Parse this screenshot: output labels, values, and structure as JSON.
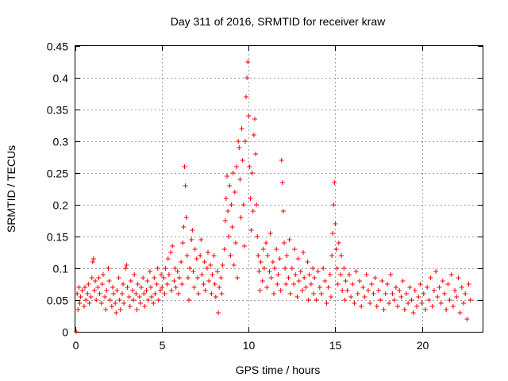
{
  "chart_data": {
    "type": "scatter",
    "title": "Day 311 of 2016, SRMTID for receiver kraw",
    "xlabel": "GPS time / hours",
    "ylabel": "SRMTID / TECUs",
    "xlim": [
      0,
      23.5
    ],
    "ylim": [
      0,
      0.45
    ],
    "xticks": [
      0,
      5,
      10,
      15,
      20
    ],
    "xtick_labels": [
      "0",
      "5",
      "10",
      "15",
      "20"
    ],
    "yticks": [
      0,
      0.05,
      0.1,
      0.15,
      0.2,
      0.25,
      0.3,
      0.35,
      0.4,
      0.45
    ],
    "ytick_labels": [
      "0",
      "0.05",
      "0.1",
      "0.15",
      "0.2",
      "0.25",
      "0.3",
      "0.35",
      "0.4",
      "0.45"
    ],
    "grid": true,
    "marker": "+",
    "color": "#ff0000",
    "series": [
      {
        "name": "SRMTID",
        "points": [
          [
            0.05,
            0.0
          ],
          [
            0.1,
            0.06
          ],
          [
            0.15,
            0.035
          ],
          [
            0.2,
            0.07
          ],
          [
            0.25,
            0.045
          ],
          [
            0.3,
            0.055
          ],
          [
            0.4,
            0.065
          ],
          [
            0.5,
            0.04
          ],
          [
            0.55,
            0.07
          ],
          [
            0.6,
            0.05
          ],
          [
            0.7,
            0.06
          ],
          [
            0.75,
            0.075
          ],
          [
            0.8,
            0.045
          ],
          [
            0.9,
            0.055
          ],
          [
            0.95,
            0.085
          ],
          [
            1.0,
            0.11
          ],
          [
            1.05,
            0.115
          ],
          [
            1.1,
            0.065
          ],
          [
            1.15,
            0.08
          ],
          [
            1.2,
            0.05
          ],
          [
            1.3,
            0.07
          ],
          [
            1.35,
            0.085
          ],
          [
            1.4,
            0.06
          ],
          [
            1.5,
            0.045
          ],
          [
            1.55,
            0.075
          ],
          [
            1.6,
            0.09
          ],
          [
            1.7,
            0.055
          ],
          [
            1.75,
            0.035
          ],
          [
            1.8,
            0.065
          ],
          [
            1.9,
            0.1
          ],
          [
            1.95,
            0.08
          ],
          [
            2.0,
            0.05
          ],
          [
            2.1,
            0.04
          ],
          [
            2.15,
            0.07
          ],
          [
            2.2,
            0.06
          ],
          [
            2.3,
            0.045
          ],
          [
            2.35,
            0.03
          ],
          [
            2.4,
            0.065
          ],
          [
            2.5,
            0.085
          ],
          [
            2.55,
            0.05
          ],
          [
            2.6,
            0.035
          ],
          [
            2.7,
            0.06
          ],
          [
            2.75,
            0.075
          ],
          [
            2.8,
            0.045
          ],
          [
            2.9,
            0.1
          ],
          [
            2.95,
            0.105
          ],
          [
            3.0,
            0.07
          ],
          [
            3.1,
            0.055
          ],
          [
            3.15,
            0.04
          ],
          [
            3.2,
            0.08
          ],
          [
            3.3,
            0.065
          ],
          [
            3.35,
            0.05
          ],
          [
            3.4,
            0.09
          ],
          [
            3.5,
            0.06
          ],
          [
            3.55,
            0.035
          ],
          [
            3.6,
            0.075
          ],
          [
            3.7,
            0.055
          ],
          [
            3.75,
            0.045
          ],
          [
            3.8,
            0.07
          ],
          [
            3.9,
            0.085
          ],
          [
            3.95,
            0.06
          ],
          [
            4.0,
            0.04
          ],
          [
            4.1,
            0.065
          ],
          [
            4.15,
            0.08
          ],
          [
            4.2,
            0.05
          ],
          [
            4.3,
            0.095
          ],
          [
            4.35,
            0.07
          ],
          [
            4.4,
            0.055
          ],
          [
            4.5,
            0.045
          ],
          [
            4.55,
            0.085
          ],
          [
            4.6,
            0.06
          ],
          [
            4.7,
            0.075
          ],
          [
            4.75,
            0.1
          ],
          [
            4.8,
            0.05
          ],
          [
            4.9,
            0.065
          ],
          [
            4.95,
            0.09
          ],
          [
            5.0,
            0.07
          ],
          [
            5.1,
            0.085
          ],
          [
            5.15,
            0.06
          ],
          [
            5.2,
            0.1
          ],
          [
            5.3,
            0.075
          ],
          [
            5.35,
            0.115
          ],
          [
            5.4,
            0.09
          ],
          [
            5.5,
            0.125
          ],
          [
            5.55,
            0.065
          ],
          [
            5.6,
            0.135
          ],
          [
            5.7,
            0.08
          ],
          [
            5.75,
            0.1
          ],
          [
            5.8,
            0.07
          ],
          [
            5.9,
            0.095
          ],
          [
            5.95,
            0.06
          ],
          [
            6.0,
            0.085
          ],
          [
            6.1,
            0.11
          ],
          [
            6.15,
            0.075
          ],
          [
            6.2,
            0.14
          ],
          [
            6.25,
            0.165
          ],
          [
            6.3,
            0.26
          ],
          [
            6.35,
            0.23
          ],
          [
            6.4,
            0.18
          ],
          [
            6.45,
            0.12
          ],
          [
            6.5,
            0.085
          ],
          [
            6.55,
            0.05
          ],
          [
            6.6,
            0.1
          ],
          [
            6.7,
            0.145
          ],
          [
            6.75,
            0.16
          ],
          [
            6.8,
            0.095
          ],
          [
            6.85,
            0.07
          ],
          [
            6.9,
            0.13
          ],
          [
            7.0,
            0.115
          ],
          [
            7.05,
            0.085
          ],
          [
            7.1,
            0.06
          ],
          [
            7.2,
            0.12
          ],
          [
            7.25,
            0.145
          ],
          [
            7.3,
            0.09
          ],
          [
            7.4,
            0.075
          ],
          [
            7.45,
            0.11
          ],
          [
            7.5,
            0.065
          ],
          [
            7.6,
            0.1
          ],
          [
            7.65,
            0.125
          ],
          [
            7.7,
            0.08
          ],
          [
            7.8,
            0.105
          ],
          [
            7.85,
            0.06
          ],
          [
            7.9,
            0.09
          ],
          [
            8.0,
            0.12
          ],
          [
            8.05,
            0.075
          ],
          [
            8.1,
            0.055
          ],
          [
            8.2,
            0.095
          ],
          [
            8.25,
            0.03
          ],
          [
            8.3,
            0.07
          ],
          [
            8.4,
            0.085
          ],
          [
            8.45,
            0.06
          ],
          [
            8.5,
            0.105
          ],
          [
            8.6,
            0.13
          ],
          [
            8.65,
            0.175
          ],
          [
            8.7,
            0.21
          ],
          [
            8.75,
            0.245
          ],
          [
            8.8,
            0.19
          ],
          [
            8.85,
            0.15
          ],
          [
            8.9,
            0.23
          ],
          [
            8.95,
            0.12
          ],
          [
            9.0,
            0.2
          ],
          [
            9.05,
            0.165
          ],
          [
            9.1,
            0.25
          ],
          [
            9.15,
            0.105
          ],
          [
            9.2,
            0.22
          ],
          [
            9.25,
            0.14
          ],
          [
            9.3,
            0.26
          ],
          [
            9.35,
            0.085
          ],
          [
            9.4,
            0.3
          ],
          [
            9.45,
            0.29
          ],
          [
            9.5,
            0.24
          ],
          [
            9.55,
            0.18
          ],
          [
            9.6,
            0.32
          ],
          [
            9.65,
            0.27
          ],
          [
            9.7,
            0.2
          ],
          [
            9.75,
            0.135
          ],
          [
            9.8,
            0.3
          ],
          [
            9.85,
            0.37
          ],
          [
            9.9,
            0.4
          ],
          [
            9.95,
            0.425
          ],
          [
            10.0,
            0.34
          ],
          [
            10.05,
            0.26
          ],
          [
            10.1,
            0.21
          ],
          [
            10.15,
            0.16
          ],
          [
            10.2,
            0.25
          ],
          [
            10.25,
            0.19
          ],
          [
            10.3,
            0.31
          ],
          [
            10.35,
            0.335
          ],
          [
            10.4,
            0.28
          ],
          [
            10.45,
            0.2
          ],
          [
            10.5,
            0.15
          ],
          [
            10.55,
            0.12
          ],
          [
            10.6,
            0.095
          ],
          [
            10.65,
            0.065
          ],
          [
            10.7,
            0.11
          ],
          [
            10.8,
            0.08
          ],
          [
            10.85,
            0.13
          ],
          [
            10.9,
            0.1
          ],
          [
            11.0,
            0.14
          ],
          [
            11.05,
            0.07
          ],
          [
            11.1,
            0.12
          ],
          [
            11.2,
            0.095
          ],
          [
            11.25,
            0.155
          ],
          [
            11.3,
            0.085
          ],
          [
            11.4,
            0.11
          ],
          [
            11.45,
            0.06
          ],
          [
            11.5,
            0.1
          ],
          [
            11.6,
            0.13
          ],
          [
            11.65,
            0.075
          ],
          [
            11.7,
            0.09
          ],
          [
            11.8,
            0.115
          ],
          [
            11.85,
            0.065
          ],
          [
            11.9,
            0.27
          ],
          [
            11.95,
            0.235
          ],
          [
            12.0,
            0.19
          ],
          [
            12.05,
            0.14
          ],
          [
            12.1,
            0.1
          ],
          [
            12.15,
            0.075
          ],
          [
            12.2,
            0.12
          ],
          [
            12.3,
            0.085
          ],
          [
            12.35,
            0.145
          ],
          [
            12.4,
            0.06
          ],
          [
            12.5,
            0.1
          ],
          [
            12.6,
            0.075
          ],
          [
            12.65,
            0.13
          ],
          [
            12.7,
            0.09
          ],
          [
            12.8,
            0.055
          ],
          [
            12.85,
            0.115
          ],
          [
            12.9,
            0.08
          ],
          [
            13.0,
            0.095
          ],
          [
            13.1,
            0.065
          ],
          [
            13.15,
            0.125
          ],
          [
            13.2,
            0.085
          ],
          [
            13.3,
            0.07
          ],
          [
            13.4,
            0.11
          ],
          [
            13.45,
            0.05
          ],
          [
            13.5,
            0.09
          ],
          [
            13.6,
            0.075
          ],
          [
            13.7,
            0.1
          ],
          [
            13.75,
            0.06
          ],
          [
            13.8,
            0.085
          ],
          [
            13.9,
            0.05
          ],
          [
            14.0,
            0.095
          ],
          [
            14.1,
            0.07
          ],
          [
            14.2,
            0.06
          ],
          [
            14.3,
            0.1
          ],
          [
            14.4,
            0.08
          ],
          [
            14.5,
            0.045
          ],
          [
            14.6,
            0.07
          ],
          [
            14.7,
            0.09
          ],
          [
            14.75,
            0.055
          ],
          [
            14.8,
            0.12
          ],
          [
            14.85,
            0.155
          ],
          [
            14.9,
            0.2
          ],
          [
            14.95,
            0.235
          ],
          [
            15.0,
            0.17
          ],
          [
            15.05,
            0.13
          ],
          [
            15.1,
            0.1
          ],
          [
            15.15,
            0.075
          ],
          [
            15.2,
            0.14
          ],
          [
            15.3,
            0.09
          ],
          [
            15.35,
            0.12
          ],
          [
            15.4,
            0.065
          ],
          [
            15.5,
            0.1
          ],
          [
            15.55,
            0.05
          ],
          [
            15.6,
            0.08
          ],
          [
            15.7,
            0.065
          ],
          [
            15.8,
            0.09
          ],
          [
            15.9,
            0.055
          ],
          [
            16.0,
            0.075
          ],
          [
            16.1,
            0.045
          ],
          [
            16.2,
            0.095
          ],
          [
            16.3,
            0.06
          ],
          [
            16.4,
            0.08
          ],
          [
            16.5,
            0.04
          ],
          [
            16.6,
            0.07
          ],
          [
            16.7,
            0.055
          ],
          [
            16.8,
            0.09
          ],
          [
            16.9,
            0.065
          ],
          [
            17.0,
            0.045
          ],
          [
            17.1,
            0.075
          ],
          [
            17.2,
            0.06
          ],
          [
            17.3,
            0.085
          ],
          [
            17.4,
            0.04
          ],
          [
            17.5,
            0.065
          ],
          [
            17.6,
            0.05
          ],
          [
            17.7,
            0.08
          ],
          [
            17.8,
            0.035
          ],
          [
            17.9,
            0.06
          ],
          [
            18.0,
            0.075
          ],
          [
            18.1,
            0.045
          ],
          [
            18.2,
            0.09
          ],
          [
            18.3,
            0.06
          ],
          [
            18.4,
            0.05
          ],
          [
            18.5,
            0.07
          ],
          [
            18.6,
            0.04
          ],
          [
            18.7,
            0.065
          ],
          [
            18.8,
            0.055
          ],
          [
            18.9,
            0.08
          ],
          [
            19.0,
            0.035
          ],
          [
            19.1,
            0.06
          ],
          [
            19.2,
            0.045
          ],
          [
            19.3,
            0.07
          ],
          [
            19.4,
            0.05
          ],
          [
            19.5,
            0.03
          ],
          [
            19.6,
            0.065
          ],
          [
            19.7,
            0.04
          ],
          [
            19.8,
            0.055
          ],
          [
            19.9,
            0.075
          ],
          [
            20.0,
            0.045
          ],
          [
            20.1,
            0.06
          ],
          [
            20.2,
            0.035
          ],
          [
            20.3,
            0.07
          ],
          [
            20.4,
            0.05
          ],
          [
            20.5,
            0.085
          ],
          [
            20.6,
            0.04
          ],
          [
            20.7,
            0.065
          ],
          [
            20.8,
            0.095
          ],
          [
            20.9,
            0.055
          ],
          [
            21.0,
            0.07
          ],
          [
            21.1,
            0.045
          ],
          [
            21.2,
            0.08
          ],
          [
            21.3,
            0.06
          ],
          [
            21.4,
            0.035
          ],
          [
            21.5,
            0.075
          ],
          [
            21.6,
            0.05
          ],
          [
            21.7,
            0.09
          ],
          [
            21.8,
            0.04
          ],
          [
            21.9,
            0.065
          ],
          [
            22.0,
            0.055
          ],
          [
            22.1,
            0.085
          ],
          [
            22.2,
            0.03
          ],
          [
            22.3,
            0.07
          ],
          [
            22.4,
            0.045
          ],
          [
            22.5,
            0.06
          ],
          [
            22.6,
            0.02
          ],
          [
            22.7,
            0.075
          ],
          [
            22.8,
            0.05
          ]
        ]
      }
    ]
  }
}
